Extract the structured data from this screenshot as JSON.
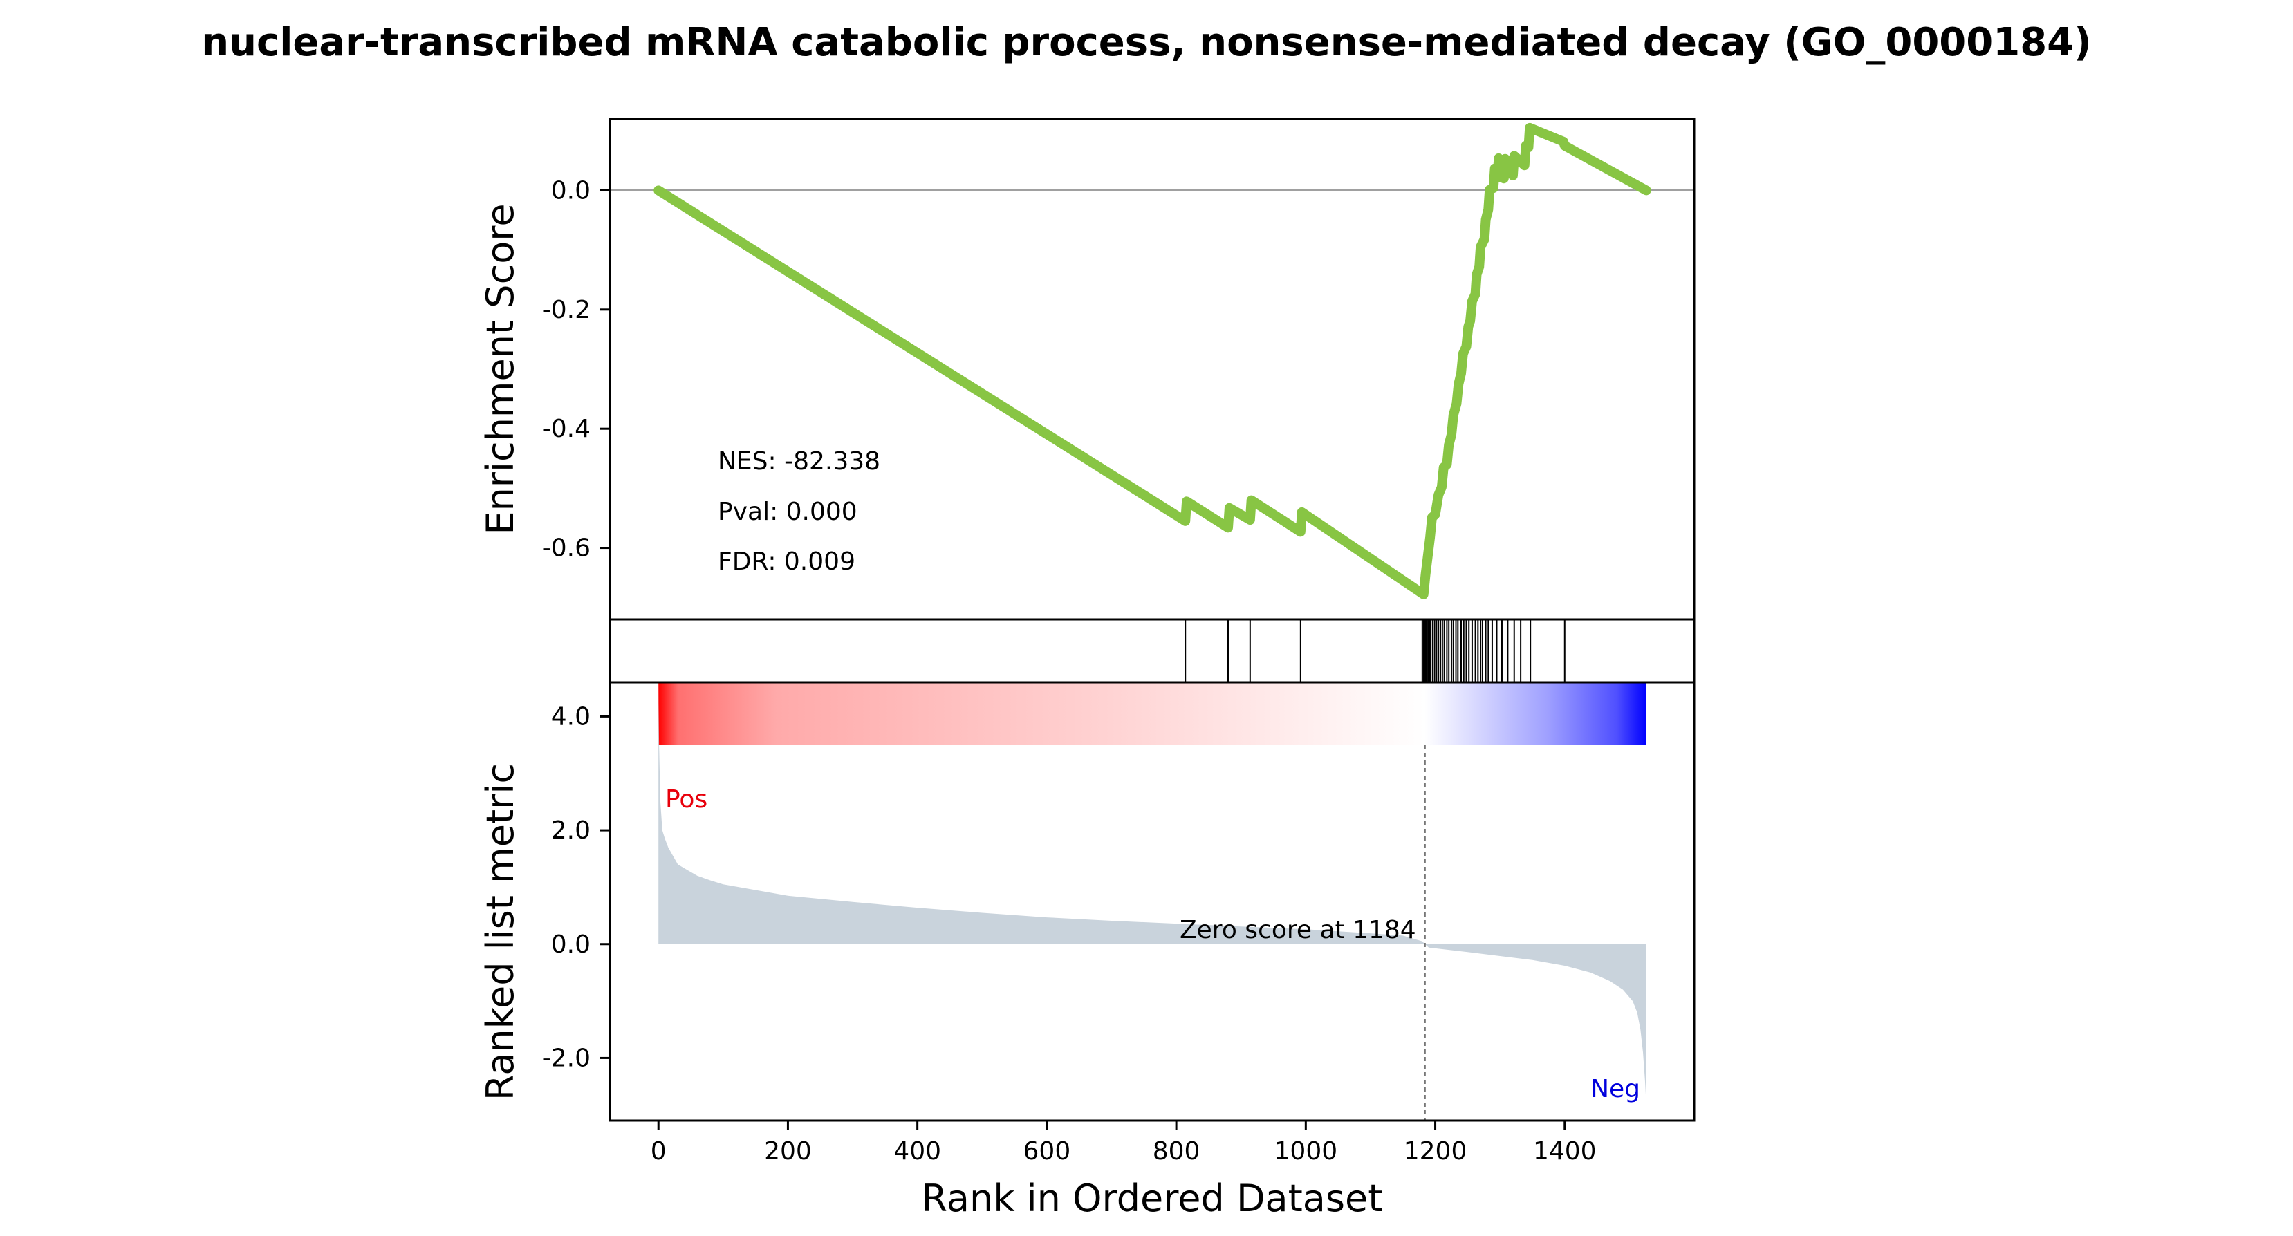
{
  "chart_data": {
    "type": "line",
    "title": "nuclear-transcribed mRNA catabolic process, nonsense-mediated decay (GO_0000184)",
    "xlabel": "Rank in Ordered Dataset",
    "xlim": [
      -75,
      1600
    ],
    "x_ticks": [
      0,
      200,
      400,
      600,
      800,
      1000,
      1200,
      1400
    ],
    "colors": {
      "es_line": "#88c544",
      "baseline": "#a0a0a0",
      "metric_fill": "#c9d3dc",
      "pos_text": "#e8000b",
      "neg_text": "#0000dd",
      "gradient_pos": "#ff0000",
      "gradient_neg": "#0000ff"
    },
    "enrichment_panel": {
      "ylabel": "Enrichment Score",
      "ylim": [
        -0.72,
        0.12
      ],
      "y_ticks": [
        0.0,
        -0.2,
        -0.4,
        -0.6
      ],
      "stats": {
        "nes": "NES: -82.338",
        "pval": "Pval: 0.000",
        "fdr": "FDR: 0.009"
      },
      "series": [
        {
          "x": [
            0,
            814,
            816,
            880,
            882,
            914,
            916,
            992,
            994,
            1182,
            1185,
            1192,
            1195,
            1200,
            1205,
            1210,
            1213,
            1218,
            1221,
            1225,
            1228,
            1233,
            1236,
            1240,
            1243,
            1248,
            1251,
            1254,
            1257,
            1262,
            1264,
            1268,
            1270,
            1276,
            1278,
            1282,
            1284,
            1290,
            1292,
            1296,
            1298,
            1306,
            1308,
            1320,
            1322,
            1338,
            1340,
            1344,
            1346,
            1398,
            1400,
            1526
          ],
          "y": [
            0.0,
            -0.555,
            -0.522,
            -0.566,
            -0.533,
            -0.553,
            -0.52,
            -0.573,
            -0.54,
            -0.678,
            -0.645,
            -0.582,
            -0.549,
            -0.544,
            -0.511,
            -0.498,
            -0.465,
            -0.46,
            -0.427,
            -0.41,
            -0.377,
            -0.358,
            -0.325,
            -0.307,
            -0.274,
            -0.262,
            -0.229,
            -0.219,
            -0.186,
            -0.174,
            -0.141,
            -0.128,
            -0.095,
            -0.082,
            -0.049,
            -0.032,
            0.001,
            0.004,
            0.037,
            0.021,
            0.054,
            0.02,
            0.053,
            0.025,
            0.058,
            0.042,
            0.075,
            0.072,
            0.105,
            0.082,
            0.075,
            0.0
          ]
        }
      ]
    },
    "hits": [
      814,
      880,
      914,
      992,
      1180,
      1182,
      1184,
      1185,
      1187,
      1189,
      1191,
      1193,
      1196,
      1199,
      1202,
      1205,
      1208,
      1211,
      1214,
      1218,
      1221,
      1225,
      1228,
      1232,
      1235,
      1240,
      1244,
      1248,
      1252,
      1257,
      1262,
      1266,
      1270,
      1273,
      1278,
      1282,
      1288,
      1295,
      1303,
      1312,
      1322,
      1332,
      1347,
      1400
    ],
    "metric_panel": {
      "ylabel": "Ranked list metric",
      "ylim": [
        -3.1,
        4.6
      ],
      "y_ticks": [
        4.0,
        2.0,
        0.0,
        -2.0
      ],
      "zero_cross": 1184,
      "zero_label": "Zero score at 1184",
      "pos_label": "Pos",
      "neg_label": "Neg",
      "series": [
        {
          "x": [
            0,
            1,
            3,
            6,
            10,
            15,
            20,
            30,
            45,
            60,
            80,
            100,
            150,
            200,
            300,
            400,
            500,
            600,
            700,
            800,
            900,
            1000,
            1100,
            1150,
            1180,
            1184,
            1190,
            1250,
            1300,
            1350,
            1400,
            1440,
            1470,
            1490,
            1505,
            1512,
            1517,
            1521,
            1524,
            1526
          ],
          "y": [
            4.6,
            3.5,
            2.5,
            2.0,
            1.85,
            1.7,
            1.6,
            1.4,
            1.3,
            1.2,
            1.12,
            1.05,
            0.95,
            0.85,
            0.74,
            0.64,
            0.55,
            0.47,
            0.41,
            0.36,
            0.31,
            0.26,
            0.19,
            0.15,
            0.05,
            0.0,
            -0.06,
            -0.14,
            -0.21,
            -0.28,
            -0.38,
            -0.5,
            -0.65,
            -0.8,
            -1.0,
            -1.2,
            -1.5,
            -1.9,
            -2.4,
            -2.8
          ]
        }
      ]
    }
  }
}
